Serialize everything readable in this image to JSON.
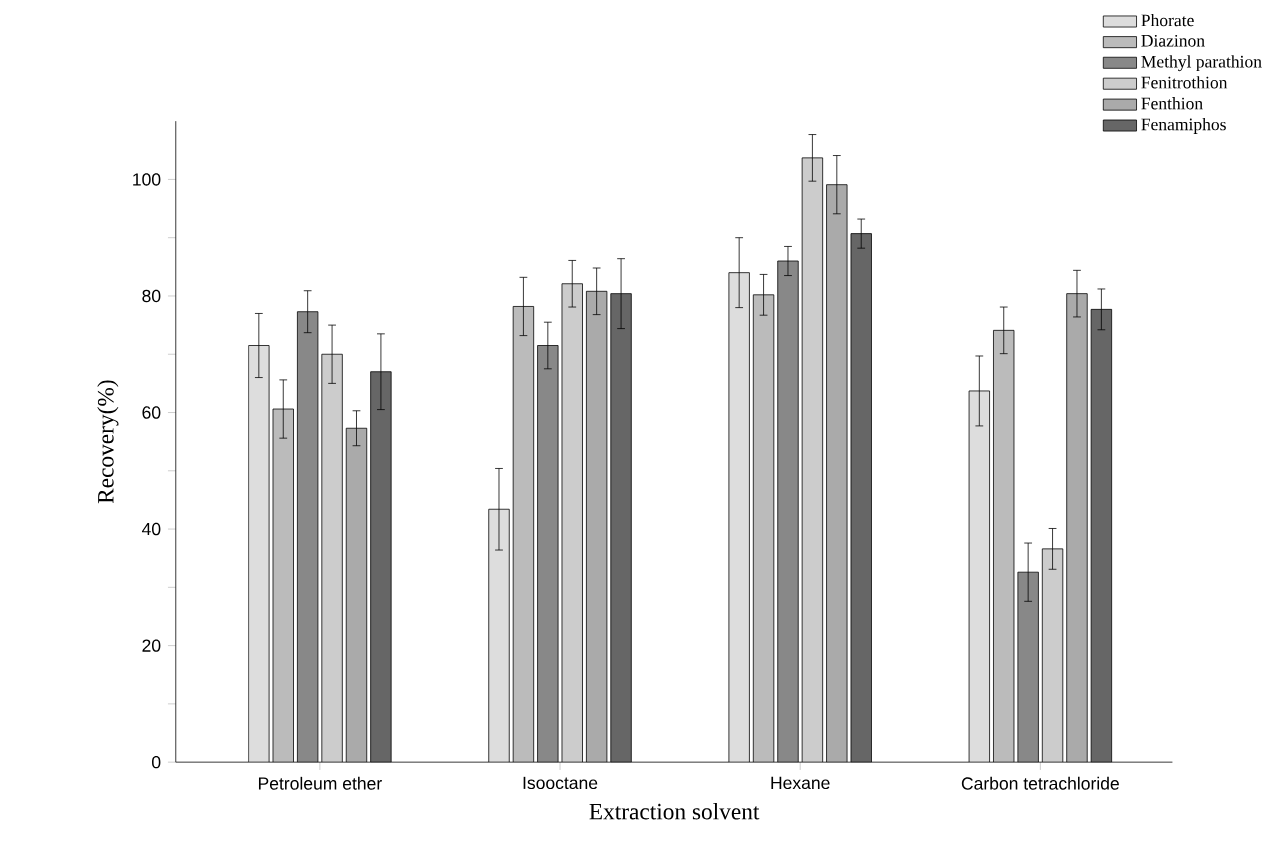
{
  "chart_data": {
    "type": "bar",
    "xlabel": "Extraction solvent",
    "ylabel": "Recovery(%)",
    "categories": [
      "Petroleum ether",
      "Isooctane",
      "Hexane",
      "Carbon tetrachloride"
    ],
    "ylim": [
      0,
      110
    ],
    "yticks": [
      0,
      {
        "value": 10,
        "label": null
      },
      20,
      {
        "value": 30,
        "label": null
      },
      40,
      {
        "value": 50,
        "label": null
      },
      60,
      {
        "value": 70,
        "label": null
      },
      80,
      {
        "value": 90,
        "label": null
      },
      100
    ],
    "legend": "top right",
    "series": [
      {
        "name": "Phorate",
        "color": "#dddddd",
        "values": [
          71.5,
          43.4,
          84,
          63.7
        ],
        "errors": [
          5.5,
          7,
          6,
          6
        ]
      },
      {
        "name": "Diazinon",
        "color": "#bbbbbb",
        "values": [
          60.6,
          78.2,
          80.2,
          74.1
        ],
        "errors": [
          5,
          5,
          3.5,
          4
        ]
      },
      {
        "name": "Methyl parathion",
        "color": "#888888",
        "values": [
          77.3,
          71.5,
          86,
          32.6
        ],
        "errors": [
          3.6,
          4,
          2.5,
          5
        ]
      },
      {
        "name": "Fenitrothion",
        "color": "#cccccc",
        "values": [
          70,
          82.1,
          103.7,
          36.6
        ],
        "errors": [
          5,
          4,
          4,
          3.5
        ]
      },
      {
        "name": "Fenthion",
        "color": "#aaaaaa",
        "values": [
          57.3,
          80.8,
          99.1,
          80.4
        ],
        "errors": [
          3,
          4,
          5,
          4
        ]
      },
      {
        "name": "Fenamiphos",
        "color": "#666666",
        "values": [
          67,
          80.4,
          90.7,
          77.7
        ],
        "errors": [
          6.5,
          6,
          2.5,
          3.5
        ]
      }
    ]
  }
}
